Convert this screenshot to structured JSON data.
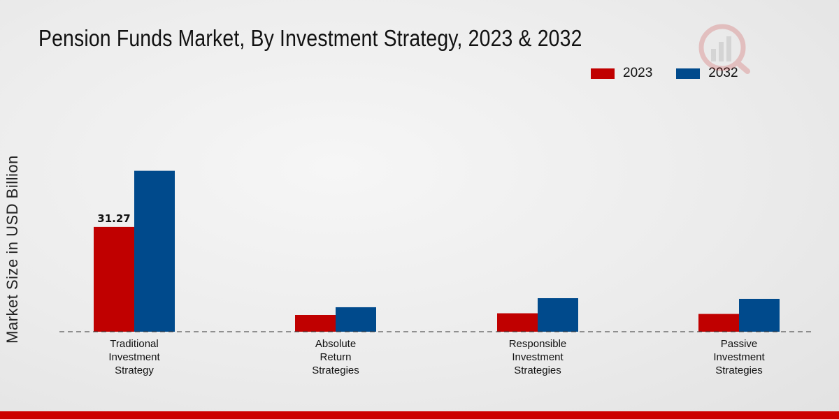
{
  "colors": {
    "series_2023": "#c00000",
    "series_2032": "#004a8c",
    "footer": "#cc0000"
  },
  "chart_data": {
    "type": "bar",
    "title": "Pension Funds Market, By Investment Strategy, 2023 & 2032",
    "ylabel": "Market Size in USD Billion",
    "xlabel": "",
    "categories": [
      [
        "Traditional",
        "Investment",
        "Strategy"
      ],
      [
        "Absolute",
        "Return",
        "Strategies"
      ],
      [
        "Responsible",
        "Investment",
        "Strategies"
      ],
      [
        "Passive",
        "Investment",
        "Strategies"
      ]
    ],
    "series": [
      {
        "name": "2023",
        "values": [
          31.27,
          5.0,
          5.5,
          5.3
        ]
      },
      {
        "name": "2032",
        "values": [
          48.0,
          7.3,
          10.0,
          9.8
        ]
      }
    ],
    "data_labels": [
      {
        "series": 0,
        "index": 0,
        "text": "31.27"
      }
    ],
    "ylim": [
      0,
      75
    ],
    "grid": false,
    "legend_position": "top-right"
  }
}
